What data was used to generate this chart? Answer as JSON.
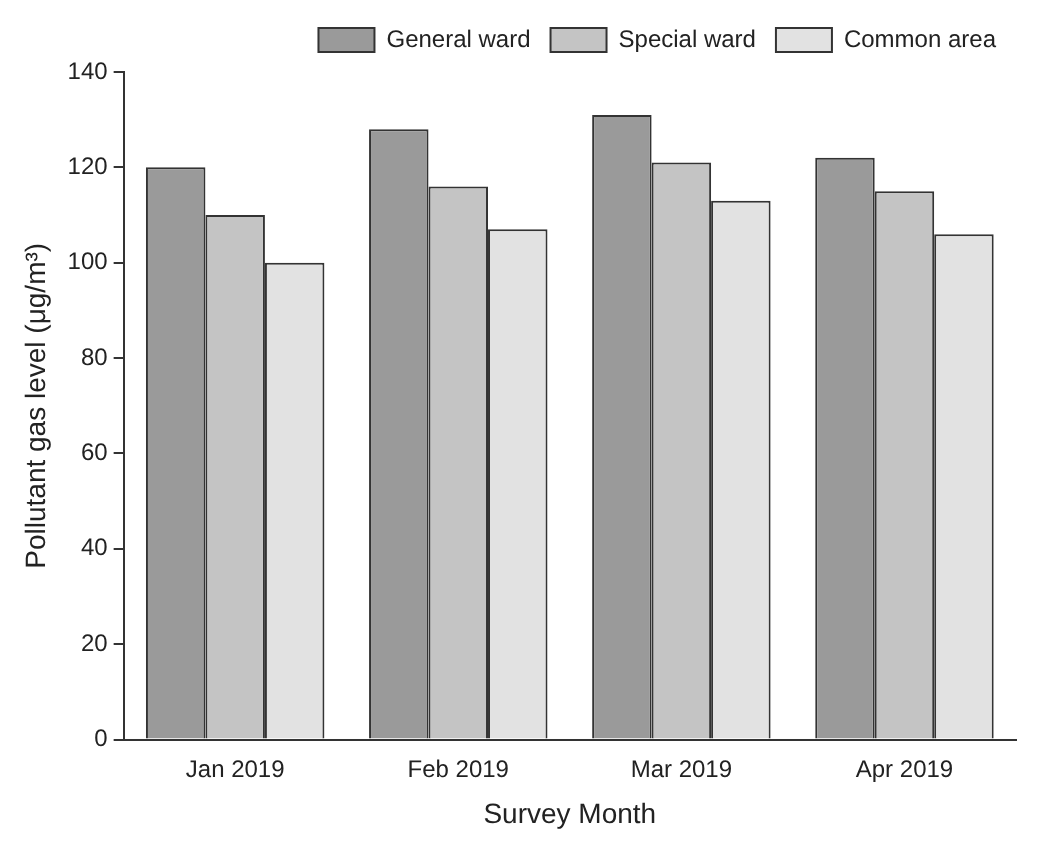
{
  "chart_data": {
    "type": "bar",
    "xlabel": "Survey Month",
    "ylabel": "Pollutant gas level (μg/m³)",
    "categories": [
      "Jan 2019",
      "Feb 2019",
      "Mar 2019",
      "Apr 2019"
    ],
    "series": [
      {
        "name": "General ward",
        "color": "#9a9a9a",
        "values": [
          120,
          128,
          131,
          122
        ]
      },
      {
        "name": "Special ward",
        "color": "#c4c4c4",
        "values": [
          110,
          116,
          121,
          115
        ]
      },
      {
        "name": "Common area",
        "color": "#e2e2e2",
        "values": [
          100,
          107,
          113,
          106
        ]
      }
    ],
    "ylim": [
      0,
      140
    ],
    "yticks": [
      0,
      20,
      40,
      60,
      80,
      100,
      120,
      140
    ],
    "grid": false,
    "legend": "top right"
  }
}
